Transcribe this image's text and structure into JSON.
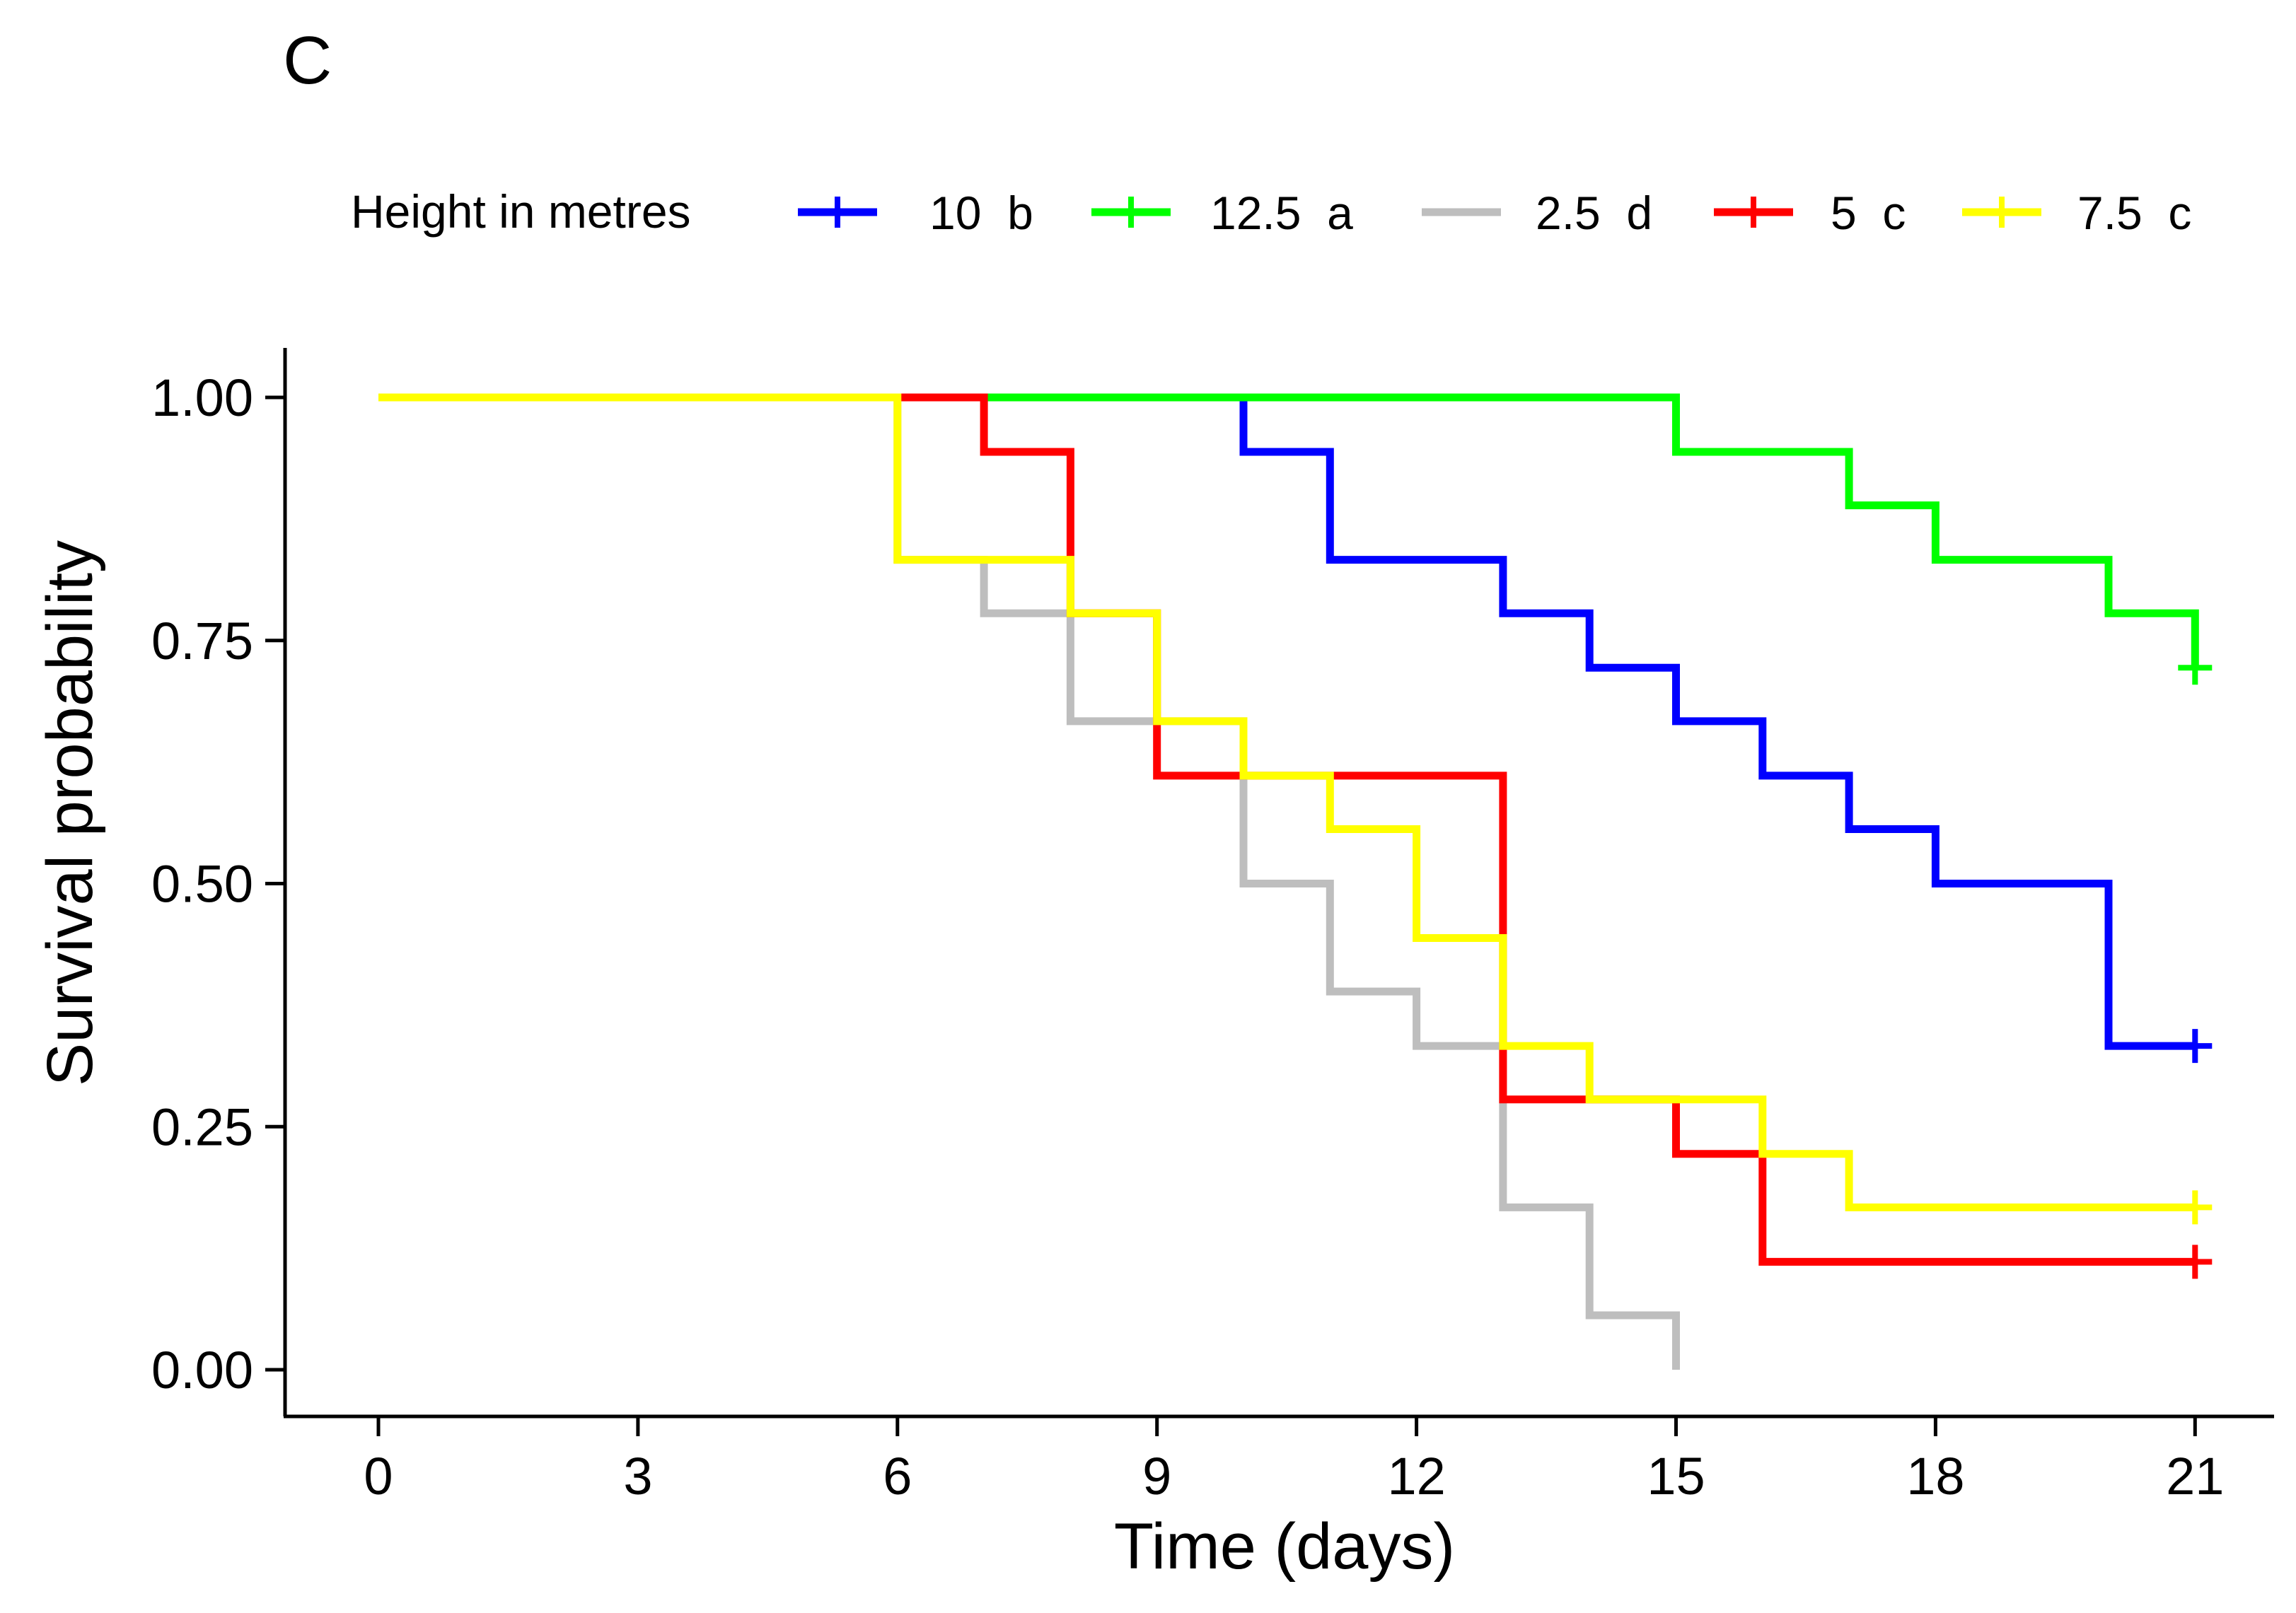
{
  "panel_label": "C",
  "chart_data": {
    "type": "line",
    "subtype": "kaplan-meier-step",
    "title": "",
    "xlabel": "Time (days)",
    "ylabel": "Survival probability",
    "xlim": [
      0,
      21
    ],
    "ylim": [
      0,
      1
    ],
    "xticks": [
      0,
      3,
      6,
      9,
      12,
      15,
      18,
      21
    ],
    "xtick_labels": [
      "0",
      "3",
      "6",
      "9",
      "12",
      "15",
      "18",
      "21"
    ],
    "yticks": [
      0,
      0.25,
      0.5,
      0.75,
      1.0
    ],
    "ytick_labels": [
      "0.00",
      "0.25",
      "0.50",
      "0.75",
      "1.00"
    ],
    "grid": false,
    "legend": {
      "title": "Height in metres",
      "placement": "top",
      "entries": [
        "10  b",
        "12.5  a",
        "2.5  d",
        "5  c",
        "7.5  c"
      ]
    },
    "series": [
      {
        "name": "10  b",
        "color": "#0000ff",
        "steps": [
          [
            0,
            1.0
          ],
          [
            10,
            0.944
          ],
          [
            11,
            0.833
          ],
          [
            13,
            0.778
          ],
          [
            14,
            0.722
          ],
          [
            15,
            0.667
          ],
          [
            16,
            0.611
          ],
          [
            17,
            0.556
          ],
          [
            18,
            0.5
          ],
          [
            20,
            0.333
          ]
        ],
        "end": 21,
        "censored": [
          [
            21,
            0.333
          ]
        ]
      },
      {
        "name": "12.5  a",
        "color": "#00ff00",
        "steps": [
          [
            0,
            1.0
          ],
          [
            15,
            0.944
          ],
          [
            17,
            0.889
          ],
          [
            18,
            0.833
          ],
          [
            20,
            0.778
          ],
          [
            21,
            0.722
          ]
        ],
        "end": 21,
        "censored": [
          [
            21,
            0.722
          ]
        ]
      },
      {
        "name": "2.5  d",
        "color": "#bebebe",
        "steps": [
          [
            0,
            1.0
          ],
          [
            6,
            0.833
          ],
          [
            7,
            0.778
          ],
          [
            8,
            0.667
          ],
          [
            10,
            0.5
          ],
          [
            11,
            0.389
          ],
          [
            12,
            0.333
          ],
          [
            13,
            0.167
          ],
          [
            14,
            0.056
          ],
          [
            15,
            0.0
          ]
        ],
        "end": 15,
        "censored": []
      },
      {
        "name": "5  c",
        "color": "#ff0000",
        "steps": [
          [
            0,
            1.0
          ],
          [
            7,
            0.944
          ],
          [
            8,
            0.778
          ],
          [
            9,
            0.611
          ],
          [
            10,
            0.611
          ],
          [
            13,
            0.278
          ],
          [
            15,
            0.222
          ],
          [
            16,
            0.111
          ]
        ],
        "end": 21,
        "censored": [
          [
            21,
            0.111
          ]
        ]
      },
      {
        "name": "7.5  c",
        "color": "#ffff00",
        "steps": [
          [
            0,
            1.0
          ],
          [
            6,
            0.833
          ],
          [
            8,
            0.778
          ],
          [
            9,
            0.667
          ],
          [
            10,
            0.611
          ],
          [
            11,
            0.556
          ],
          [
            12,
            0.444
          ],
          [
            13,
            0.333
          ],
          [
            14,
            0.278
          ],
          [
            16,
            0.222
          ],
          [
            17,
            0.167
          ]
        ],
        "end": 21,
        "censored": [
          [
            21,
            0.167
          ]
        ]
      }
    ]
  }
}
